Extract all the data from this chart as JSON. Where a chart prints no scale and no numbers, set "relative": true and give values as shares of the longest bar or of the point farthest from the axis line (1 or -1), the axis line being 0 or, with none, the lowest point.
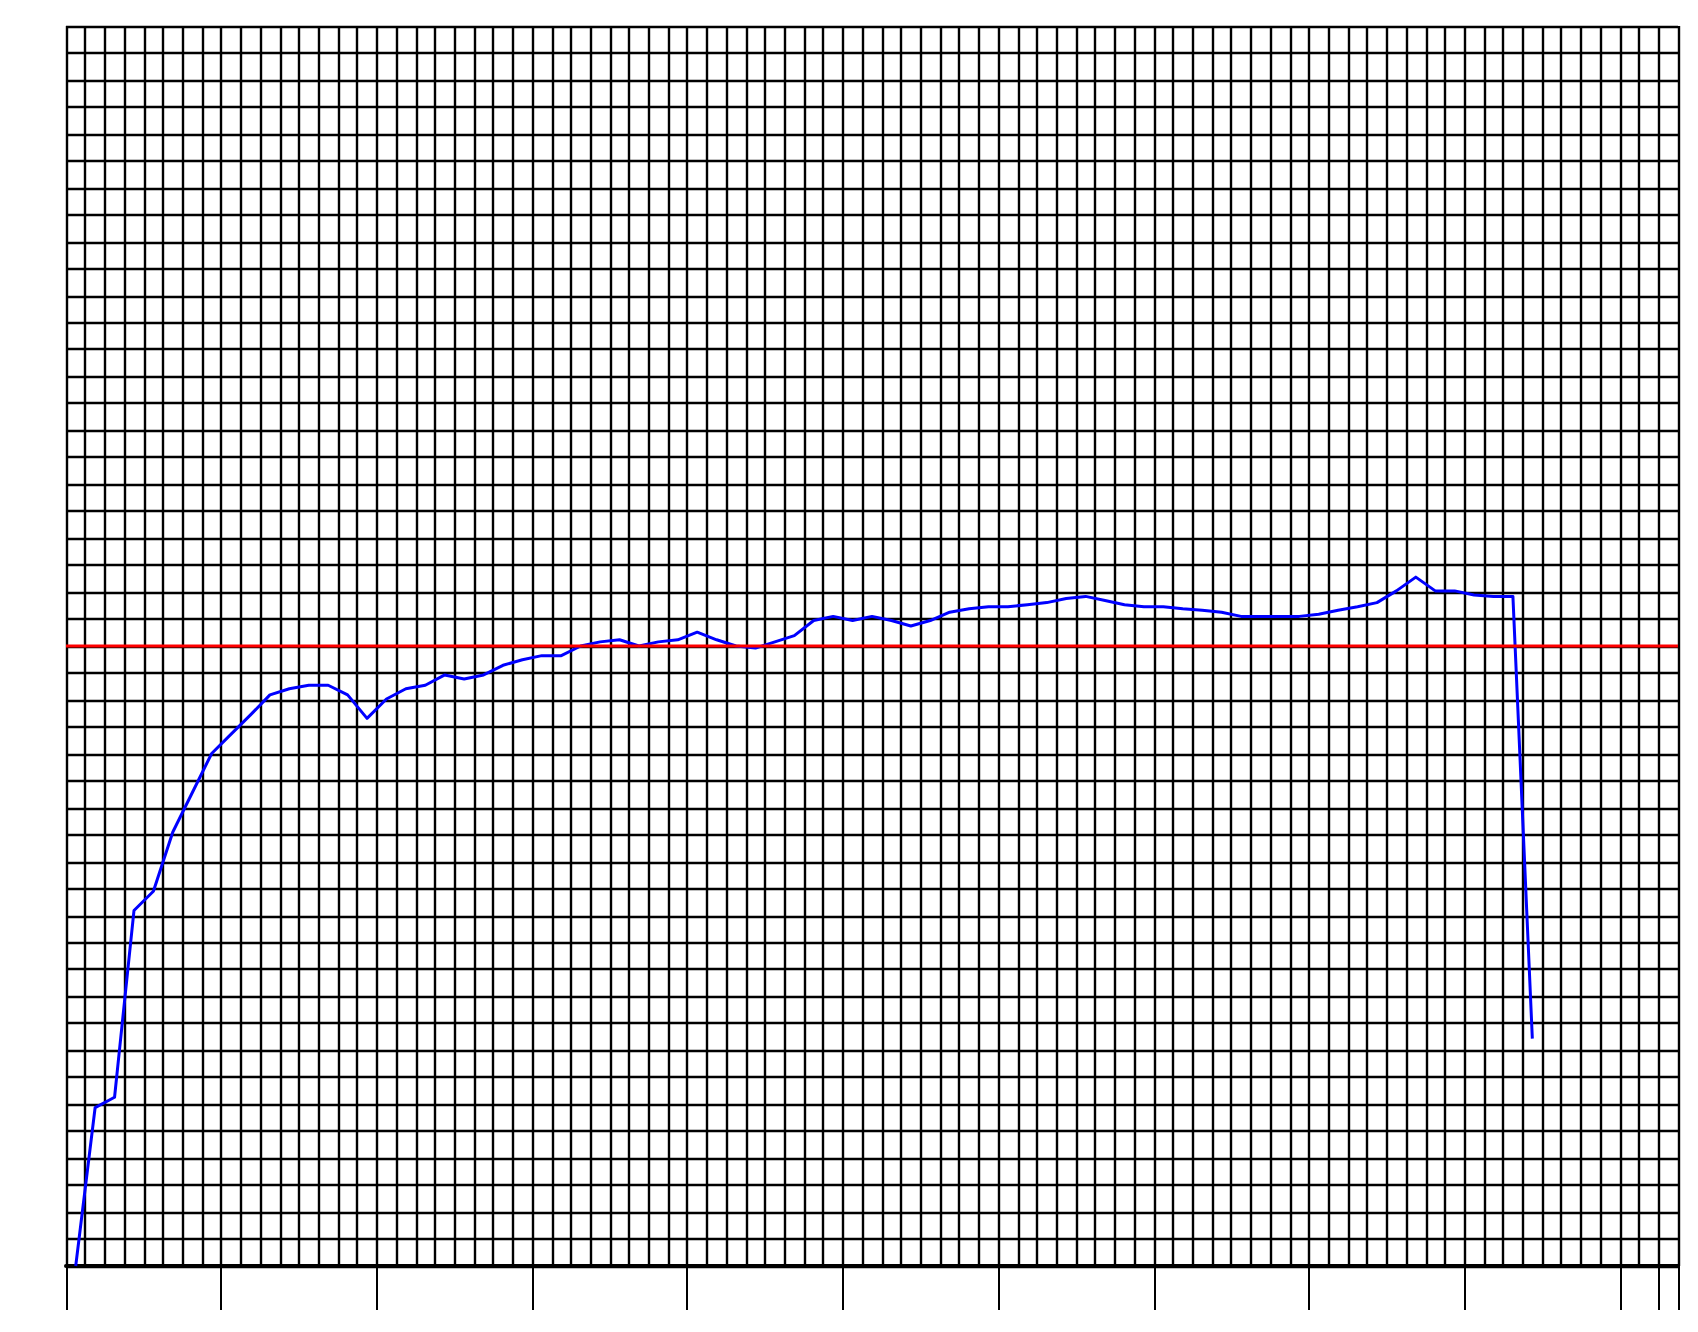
{
  "chart_data": {
    "type": "line",
    "relative": true,
    "grid": true,
    "tick_labels": false,
    "marker": "none",
    "line_style": "solid",
    "categories": [
      null,
      null,
      null,
      null,
      null,
      null,
      null,
      null,
      null,
      null,
      null,
      null,
      null,
      null,
      null,
      null,
      null,
      null,
      null,
      null,
      null,
      null,
      null,
      null,
      null,
      null,
      null,
      null,
      null,
      null,
      null,
      null,
      null,
      null,
      null,
      null,
      null,
      null,
      null,
      null,
      null,
      null,
      null,
      null,
      null,
      null,
      null,
      null,
      null,
      null,
      null,
      null,
      null,
      null,
      null,
      null,
      null,
      null,
      null,
      null,
      null,
      null,
      null,
      null,
      null,
      null,
      null,
      null,
      null,
      null,
      null,
      null,
      null,
      null,
      null,
      null,
      null,
      null,
      null,
      null,
      null,
      null,
      null
    ],
    "series": [
      {
        "color": "#0000ff",
        "values": [
          0,
          0.23,
          0.245,
          0.516,
          0.544,
          0.63,
          0.687,
          0.744,
          0.772,
          0.8,
          0.829,
          0.838,
          0.843,
          0.843,
          0.829,
          0.795,
          0.823,
          0.838,
          0.843,
          0.858,
          0.852,
          0.858,
          0.872,
          0.88,
          0.886,
          0.886,
          0.9,
          0.906,
          0.909,
          0.9,
          0.906,
          0.909,
          0.92,
          0.909,
          0.9,
          0.897,
          0.906,
          0.915,
          0.937,
          0.943,
          0.937,
          0.943,
          0.937,
          0.929,
          0.937,
          0.949,
          0.954,
          0.957,
          0.957,
          0.96,
          0.963,
          0.969,
          0.972,
          0.966,
          0.96,
          0.957,
          0.957,
          0.954,
          0.952,
          0.949,
          0.943,
          0.943,
          0.943,
          0.943,
          0.946,
          0.952,
          0.957,
          0.963,
          0.98,
          1,
          0.98,
          0.98,
          0.974,
          0.972,
          0.972,
          0.33,
          null,
          null,
          null,
          null,
          null,
          null,
          null
        ]
      }
    ],
    "ref_lines": [
      {
        "axis": "y",
        "value": 0.9,
        "color": "#ff0000"
      }
    ]
  }
}
